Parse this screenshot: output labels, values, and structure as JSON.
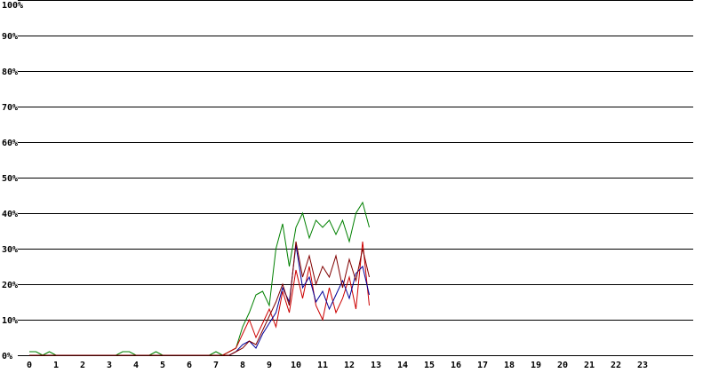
{
  "chart_data": {
    "type": "line",
    "title": "",
    "xlabel": "",
    "ylabel": "",
    "xlim": [
      0,
      24
    ],
    "ylim": [
      0,
      100
    ],
    "grid": true,
    "y_ticks": [
      "0%",
      "10%",
      "20%",
      "30%",
      "40%",
      "50%",
      "60%",
      "70%",
      "80%",
      "90%",
      "100%"
    ],
    "x_ticks": [
      "0",
      "1",
      "2",
      "3",
      "4",
      "5",
      "6",
      "7",
      "8",
      "9",
      "10",
      "11",
      "12",
      "13",
      "14",
      "15",
      "16",
      "17",
      "18",
      "19",
      "20",
      "21",
      "22",
      "23"
    ],
    "x": [
      0,
      0.25,
      0.5,
      0.75,
      1,
      1.25,
      1.5,
      1.75,
      2,
      2.25,
      2.5,
      2.75,
      3,
      3.25,
      3.5,
      3.75,
      4,
      4.25,
      4.5,
      4.75,
      5,
      5.25,
      5.5,
      5.75,
      6,
      6.25,
      6.5,
      6.75,
      7,
      7.25,
      7.5,
      7.75,
      8,
      8.25,
      8.5,
      8.75,
      9,
      9.25,
      9.5,
      9.75,
      10,
      10.25,
      10.5,
      10.75,
      11,
      11.25,
      11.5,
      11.75,
      12,
      12.25,
      12.5,
      12.75
    ],
    "series": [
      {
        "color": "#008000",
        "values": [
          1,
          1,
          0,
          1,
          0,
          0,
          0,
          0,
          0,
          0,
          0,
          0,
          0,
          0,
          1,
          1,
          0,
          0,
          0,
          1,
          0,
          0,
          0,
          0,
          0,
          0,
          0,
          0,
          1,
          0,
          1,
          2,
          8,
          12,
          17,
          18,
          14,
          30,
          37,
          25,
          36,
          40,
          33,
          38,
          36,
          38,
          34,
          38,
          32,
          40,
          43,
          36
        ]
      },
      {
        "color": "#cc0000",
        "values": [
          0,
          0,
          0,
          0,
          0,
          0,
          0,
          0,
          0,
          0,
          0,
          0,
          0,
          0,
          0,
          0,
          0,
          0,
          0,
          0,
          0,
          0,
          0,
          0,
          0,
          0,
          0,
          0,
          0,
          0,
          1,
          2,
          6,
          10,
          5,
          9,
          13,
          8,
          18,
          12,
          24,
          16,
          25,
          14,
          10,
          19,
          12,
          16,
          22,
          13,
          32,
          14
        ]
      },
      {
        "color": "#000099",
        "values": [
          0,
          0,
          0,
          0,
          0,
          0,
          0,
          0,
          0,
          0,
          0,
          0,
          0,
          0,
          0,
          0,
          0,
          0,
          0,
          0,
          0,
          0,
          0,
          0,
          0,
          0,
          0,
          0,
          0,
          0,
          0,
          1,
          3,
          4,
          2,
          6,
          9,
          12,
          19,
          15,
          31,
          19,
          22,
          15,
          18,
          13,
          17,
          21,
          16,
          23,
          25,
          17
        ]
      },
      {
        "color": "#800000",
        "values": [
          0,
          0,
          0,
          0,
          0,
          0,
          0,
          0,
          0,
          0,
          0,
          0,
          0,
          0,
          0,
          0,
          0,
          0,
          0,
          0,
          0,
          0,
          0,
          0,
          0,
          0,
          0,
          0,
          0,
          0,
          0,
          1,
          2,
          4,
          3,
          7,
          11,
          15,
          20,
          14,
          32,
          22,
          28,
          20,
          25,
          22,
          28,
          19,
          27,
          21,
          30,
          22
        ]
      }
    ]
  }
}
